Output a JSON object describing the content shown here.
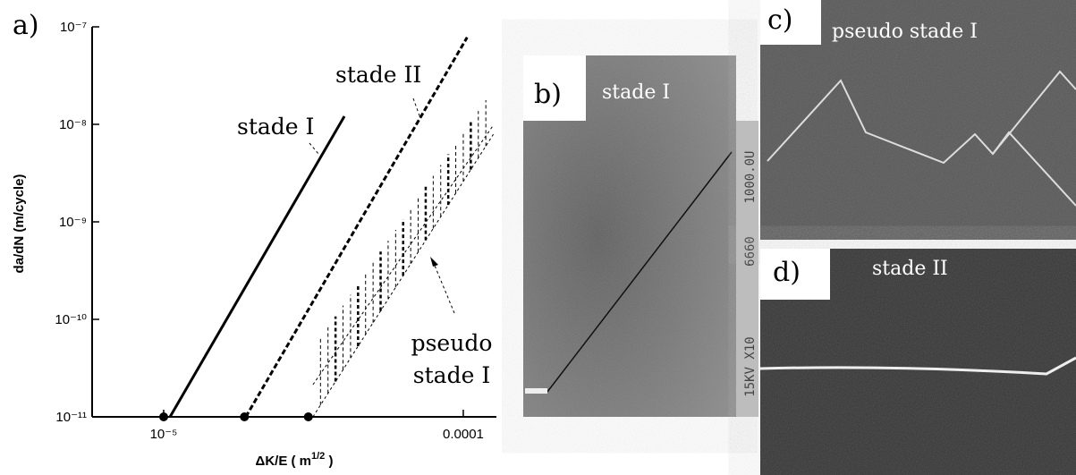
{
  "chart_data": {
    "type": "line",
    "panel_label": "a)",
    "xscale": "log",
    "yscale": "log",
    "xlim": [
      5.77e-06,
      0.000129
    ],
    "ylim": [
      1e-11,
      1e-07
    ],
    "xticks": [
      {
        "value": 1e-05,
        "label": "10⁻⁵"
      },
      0.0001
    ],
    "yticks": [
      {
        "value": 1e-11,
        "label": "10⁻¹¹"
      },
      {
        "value": 1e-10,
        "label": "10⁻¹⁰"
      },
      {
        "value": 1e-09,
        "label": "10⁻⁹"
      },
      {
        "value": 1e-08,
        "label": "10⁻⁸"
      },
      {
        "value": 1e-07,
        "label": "10⁻⁷"
      }
    ],
    "ylabel": "da/dN (m/cycle)",
    "xlabel": [
      "ΔK/E ( m",
      "1/2",
      " )"
    ],
    "color": "#000000",
    "series": [
      {
        "name": "stade I",
        "style": "solid",
        "x": [
          1.05e-05,
          4.01e-05
        ],
        "values": [
          1e-11,
          1.21e-08
        ]
      },
      {
        "name": "stade II",
        "style": "dashed",
        "x": [
          1.88e-05,
          0.000103
        ],
        "values": [
          1e-11,
          7.8e-08
        ]
      }
    ],
    "band": {
      "name": [
        "pseudo",
        "stade I"
      ],
      "x": [
        3.15e-05,
        0.000126
      ],
      "values": [
        1e-11,
        7.9e-09
      ],
      "values_upper": [
        2.14e-11,
        9.8e-09
      ]
    },
    "points": {
      "x": [
        1e-05,
        1.86e-05,
        3.04e-05
      ],
      "values": [
        1e-11,
        1e-11,
        1e-11
      ]
    }
  },
  "panels": {
    "b": {
      "label": "b)",
      "caption": "stade I",
      "scale_text": [
        "1000.0U",
        "6660",
        "15KV X10"
      ]
    },
    "c": {
      "label": "c)",
      "caption": "pseudo stade I"
    },
    "d": {
      "label": "d)",
      "caption": "stade II"
    }
  }
}
